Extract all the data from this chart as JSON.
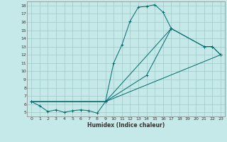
{
  "xlabel": "Humidex (Indice chaleur)",
  "bg_color": "#c5e8e8",
  "grid_color": "#a0c8c8",
  "line_color": "#006b6b",
  "xlim": [
    -0.5,
    23.5
  ],
  "ylim": [
    4.5,
    18.5
  ],
  "xticks": [
    0,
    1,
    2,
    3,
    4,
    5,
    6,
    7,
    8,
    9,
    10,
    11,
    12,
    13,
    14,
    15,
    16,
    17,
    18,
    19,
    20,
    21,
    22,
    23
  ],
  "yticks": [
    5,
    6,
    7,
    8,
    9,
    10,
    11,
    12,
    13,
    14,
    15,
    16,
    17,
    18
  ],
  "line_bottom": {
    "x": [
      0,
      9,
      23
    ],
    "y": [
      6.3,
      6.3,
      12.0
    ]
  },
  "line_mid1": {
    "x": [
      0,
      9,
      17,
      21,
      22,
      23
    ],
    "y": [
      6.3,
      6.3,
      15.2,
      13.0,
      13.0,
      12.0
    ]
  },
  "line_mid2": {
    "x": [
      0,
      9,
      14,
      17,
      21,
      22,
      23
    ],
    "y": [
      6.3,
      6.3,
      9.5,
      15.2,
      13.0,
      13.0,
      12.0
    ]
  },
  "line_main": {
    "x": [
      0,
      1,
      2,
      3,
      4,
      5,
      6,
      7,
      8,
      9,
      10,
      11,
      12,
      13,
      14,
      15,
      16,
      17
    ],
    "y": [
      6.3,
      5.8,
      5.1,
      5.3,
      5.0,
      5.2,
      5.3,
      5.2,
      4.9,
      6.3,
      11.0,
      13.2,
      16.1,
      17.8,
      17.9,
      18.1,
      17.2,
      15.2
    ]
  }
}
